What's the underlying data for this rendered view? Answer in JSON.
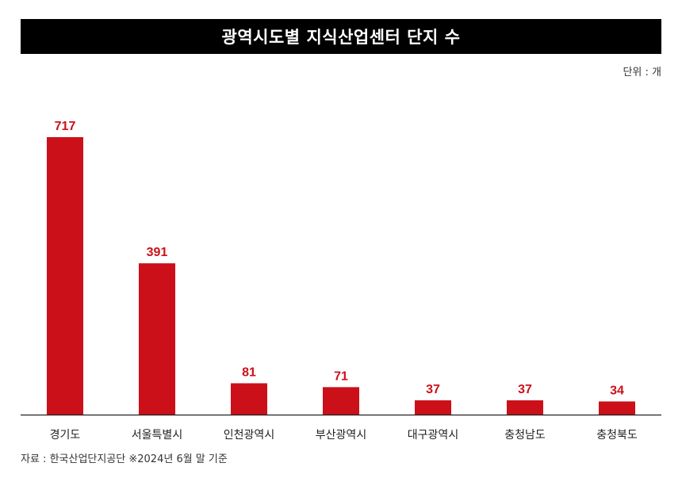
{
  "header": {
    "title": "광역시도별 지식산업센터 단지 수",
    "unit": "단위 : 개"
  },
  "footer": {
    "source": "자료 : 한국산업단지공단 ※2024년 6월 말 기준"
  },
  "colors": {
    "bar": "#cc1019",
    "value_label": "#cc1019",
    "axis": "#222222",
    "title_bg": "#000000",
    "title_text": "#ffffff"
  },
  "chart_data": {
    "type": "bar",
    "title": "광역시도별 지식산업센터 단지 수",
    "xlabel": "",
    "ylabel": "",
    "unit": "단위 : 개",
    "categories": [
      "경기도",
      "서울특별시",
      "인천광역시",
      "부산광역시",
      "대구광역시",
      "충청남도",
      "충청북도"
    ],
    "values": [
      717,
      391,
      81,
      71,
      37,
      37,
      34
    ],
    "ylim": [
      0,
      717
    ],
    "grid": false,
    "legend": "none",
    "data_labels": true
  }
}
